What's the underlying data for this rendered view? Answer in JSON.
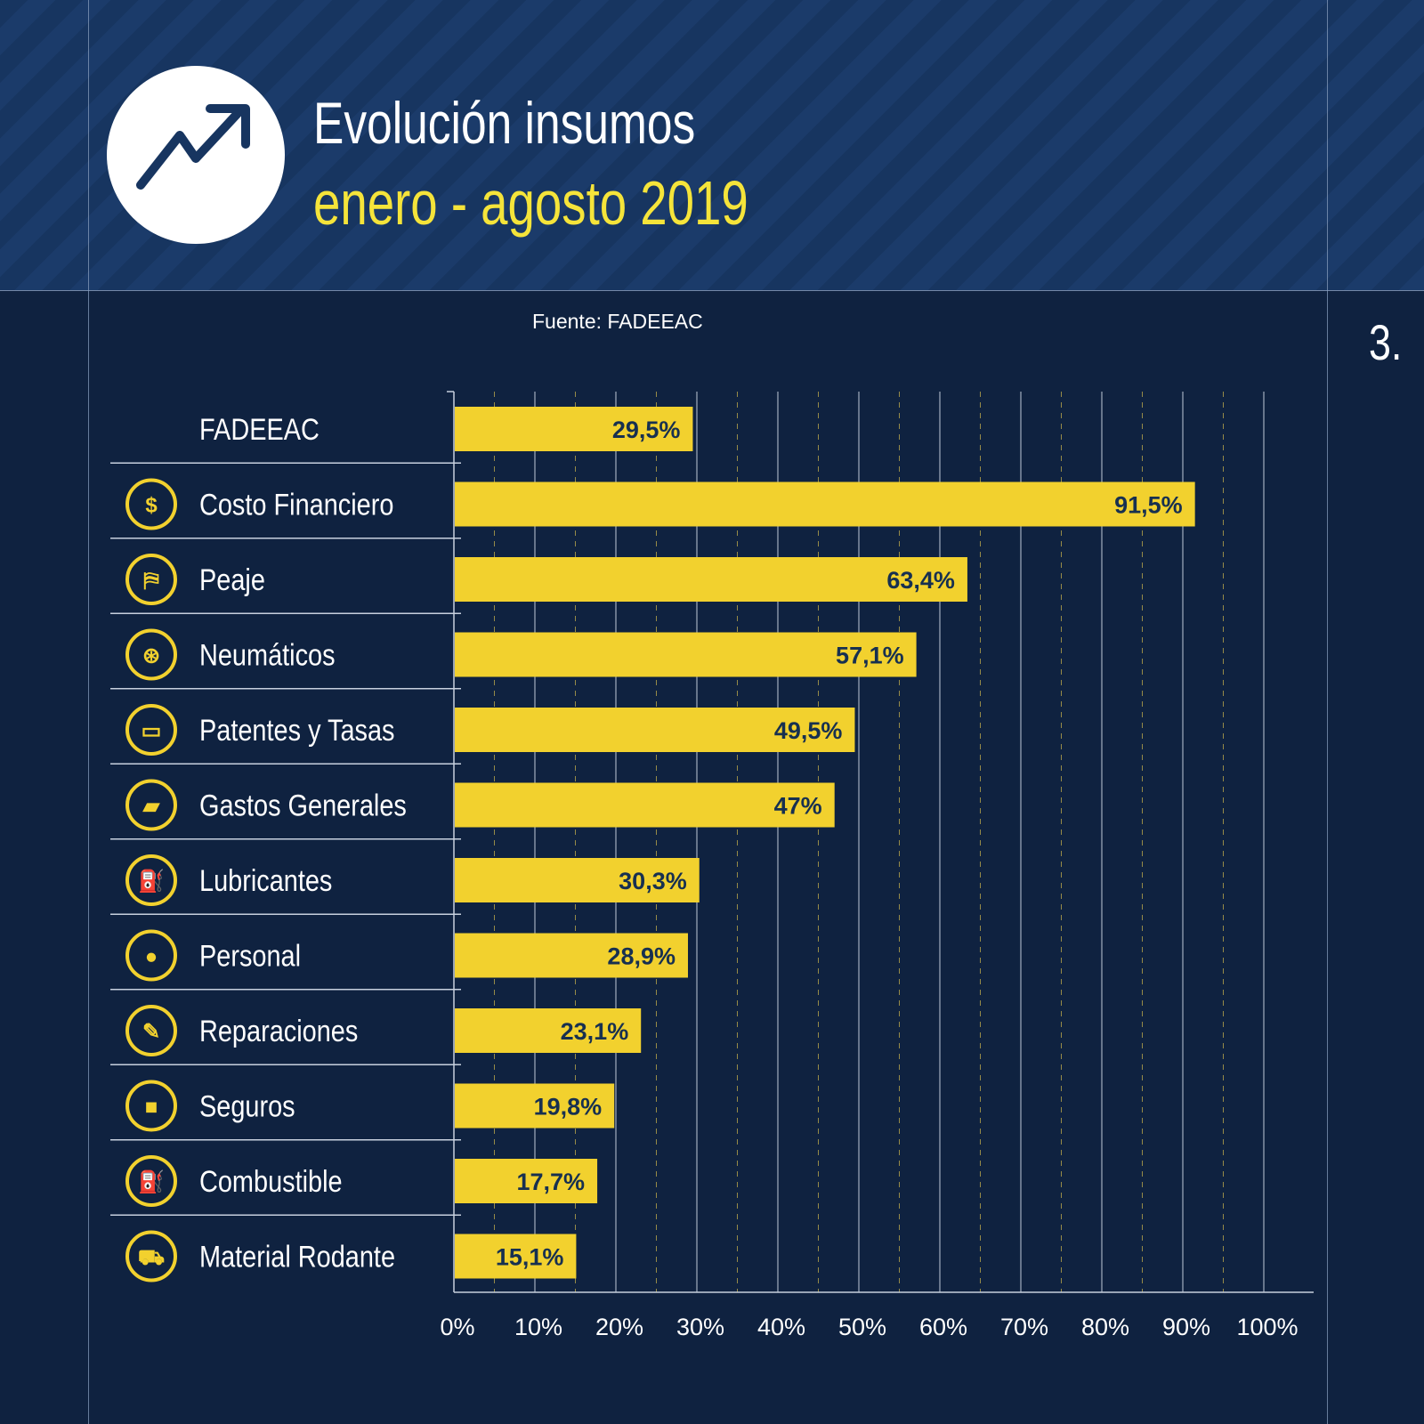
{
  "header": {
    "title": "Evolución insumos",
    "subtitle": "enero - agosto 2019",
    "icon": "trending-up-icon"
  },
  "source": "Fuente: FADEEAC",
  "page_number": "3.",
  "colors": {
    "background": "#0f2240",
    "header": "#173560",
    "bar": "#f2d12e",
    "subtitle": "#f5e43a",
    "value_text": "#173050"
  },
  "chart_data": {
    "type": "bar",
    "orientation": "horizontal",
    "categories": [
      "FADEEAC",
      "Costo Financiero",
      "Peaje",
      "Neumáticos",
      "Patentes y Tasas",
      "Gastos Generales",
      "Lubricantes",
      "Personal",
      "Reparaciones",
      "Seguros",
      "Combustible",
      "Material Rodante"
    ],
    "icons": [
      "",
      "dollar-icon",
      "toll-barrier-icon",
      "tire-icon",
      "license-plate-icon",
      "banknote-icon",
      "oil-can-icon",
      "person-icon",
      "wrench-icon",
      "lock-icon",
      "fuel-pump-icon",
      "truck-icon"
    ],
    "values": [
      29.5,
      91.5,
      63.4,
      57.1,
      49.5,
      47,
      30.3,
      28.9,
      23.1,
      19.8,
      17.7,
      15.1
    ],
    "value_labels": [
      "29,5%",
      "91,5%",
      "63,4%",
      "57,1%",
      "49,5%",
      "47%",
      "30,3%",
      "28,9%",
      "23,1%",
      "19,8%",
      "17,7%",
      "15,1%"
    ],
    "xlim": [
      0,
      100
    ],
    "xticks": [
      "0%",
      "10%",
      "20%",
      "30%",
      "40%",
      "50%",
      "60%",
      "70%",
      "80%",
      "90%",
      "100%"
    ],
    "grid": true
  }
}
